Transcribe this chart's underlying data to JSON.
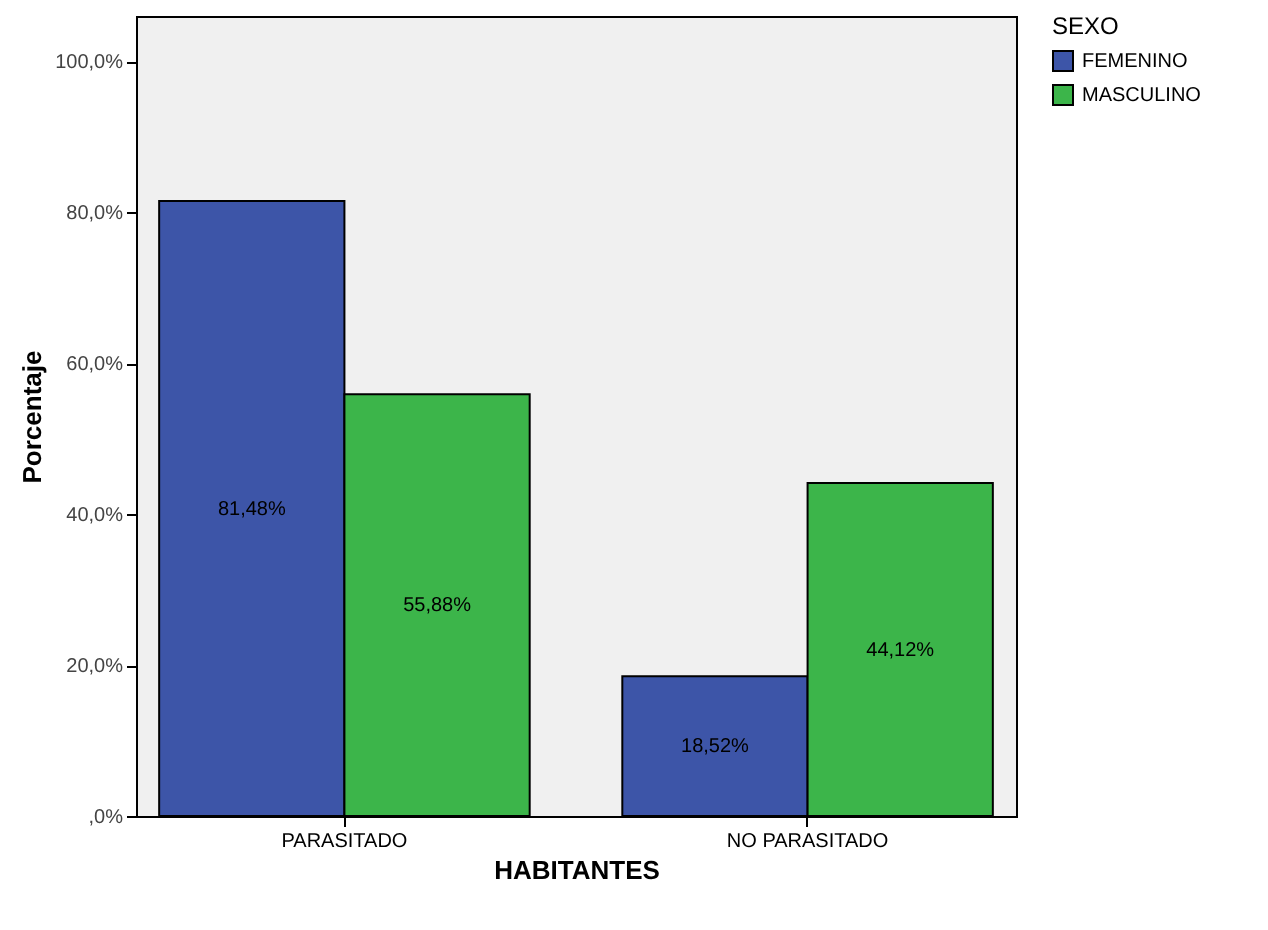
{
  "chart_data": {
    "type": "bar",
    "xlabel": "HABITANTES",
    "ylabel": "Porcentaje",
    "legend_title": "SEXO",
    "legend": "top right",
    "grid": false,
    "categories": [
      "PARASITADO",
      "NO PARASITADO"
    ],
    "series": [
      {
        "name": "FEMENINO",
        "color": "#3d55a8",
        "values": [
          81.48,
          18.52
        ],
        "value_labels": [
          "81,48%",
          "18,52%"
        ]
      },
      {
        "name": "MASCULINO",
        "color": "#3cb54a",
        "values": [
          55.88,
          44.12
        ],
        "value_labels": [
          "55,88%",
          "44,12%"
        ]
      }
    ],
    "ylim": [
      0,
      106
    ],
    "yticks": [
      {
        "value": 0,
        "label": ",0%"
      },
      {
        "value": 20,
        "label": "20,0%"
      },
      {
        "value": 40,
        "label": "40,0%"
      },
      {
        "value": 60,
        "label": "60,0%"
      },
      {
        "value": 80,
        "label": "80,0%"
      },
      {
        "value": 100,
        "label": "100,0%"
      }
    ]
  }
}
